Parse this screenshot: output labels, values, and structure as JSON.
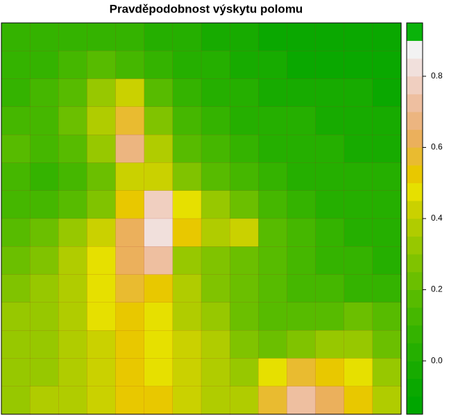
{
  "chart_data": {
    "type": "heatmap",
    "title": "Pravděpodobnost výskytu polomu",
    "z": [
      [
        0.05,
        0.05,
        0.05,
        0.05,
        0.05,
        0.0,
        0.0,
        -0.05,
        -0.05,
        -0.1,
        -0.1,
        -0.1,
        -0.1,
        -0.1
      ],
      [
        0.05,
        0.05,
        0.1,
        0.15,
        0.1,
        0.05,
        0.0,
        0.0,
        -0.05,
        -0.05,
        -0.1,
        -0.1,
        -0.1,
        -0.1
      ],
      [
        0.05,
        0.1,
        0.15,
        0.3,
        0.4,
        0.15,
        0.05,
        0.0,
        0.0,
        -0.05,
        -0.05,
        -0.05,
        -0.05,
        -0.1
      ],
      [
        0.1,
        0.1,
        0.2,
        0.35,
        0.55,
        0.25,
        0.1,
        0.05,
        0.0,
        0.0,
        0.0,
        -0.05,
        -0.05,
        -0.05
      ],
      [
        0.15,
        0.1,
        0.15,
        0.3,
        0.65,
        0.35,
        0.15,
        0.1,
        0.05,
        0.0,
        0.0,
        0.0,
        -0.05,
        -0.05
      ],
      [
        0.1,
        0.05,
        0.1,
        0.2,
        0.4,
        0.4,
        0.25,
        0.15,
        0.1,
        0.05,
        0.0,
        0.0,
        0.0,
        0.0
      ],
      [
        0.1,
        0.1,
        0.15,
        0.25,
        0.5,
        0.75,
        0.45,
        0.3,
        0.2,
        0.1,
        0.05,
        0.0,
        0.0,
        0.0
      ],
      [
        0.15,
        0.2,
        0.3,
        0.4,
        0.6,
        0.8,
        0.5,
        0.35,
        0.4,
        0.15,
        0.1,
        0.05,
        0.0,
        0.0
      ],
      [
        0.2,
        0.25,
        0.35,
        0.45,
        0.6,
        0.7,
        0.3,
        0.25,
        0.2,
        0.15,
        0.1,
        0.05,
        0.05,
        0.0
      ],
      [
        0.25,
        0.3,
        0.35,
        0.45,
        0.55,
        0.5,
        0.35,
        0.25,
        0.2,
        0.15,
        0.1,
        0.1,
        0.05,
        0.05
      ],
      [
        0.3,
        0.3,
        0.35,
        0.45,
        0.5,
        0.45,
        0.35,
        0.3,
        0.2,
        0.15,
        0.15,
        0.15,
        0.2,
        0.15
      ],
      [
        0.3,
        0.3,
        0.35,
        0.4,
        0.5,
        0.45,
        0.4,
        0.35,
        0.25,
        0.2,
        0.25,
        0.3,
        0.3,
        0.2
      ],
      [
        0.3,
        0.3,
        0.35,
        0.4,
        0.5,
        0.45,
        0.4,
        0.35,
        0.3,
        0.45,
        0.55,
        0.5,
        0.45,
        0.3
      ],
      [
        0.3,
        0.35,
        0.35,
        0.4,
        0.5,
        0.5,
        0.4,
        0.35,
        0.35,
        0.55,
        0.7,
        0.6,
        0.5,
        0.35
      ]
    ],
    "levels": [
      -0.15,
      -0.1,
      -0.05,
      0.0,
      0.05,
      0.1,
      0.15,
      0.2,
      0.25,
      0.3,
      0.35,
      0.4,
      0.45,
      0.5,
      0.55,
      0.6,
      0.65,
      0.7,
      0.75,
      0.8,
      0.85,
      0.9,
      0.95
    ],
    "colors": [
      "#00a600",
      "#0aa800",
      "#17ab00",
      "#25af00",
      "#34b300",
      "#45b700",
      "#57bb00",
      "#6bbf00",
      "#80c300",
      "#97c800",
      "#b0cc00",
      "#cad100",
      "#e6e000",
      "#e8c800",
      "#e9bb30",
      "#ebb05c",
      "#ecb580",
      "#eebfa0",
      "#f0cfc0",
      "#f1e0dc",
      "#f2f2f2",
      "#0ab30a",
      "#00a600"
    ],
    "ylim": [
      -0.15,
      0.95
    ],
    "yticks": [
      {
        "value": 0,
        "label": "0.0"
      },
      0.2,
      0.4,
      0.6,
      0.8
    ],
    "contour_color": "#a52a2a"
  }
}
